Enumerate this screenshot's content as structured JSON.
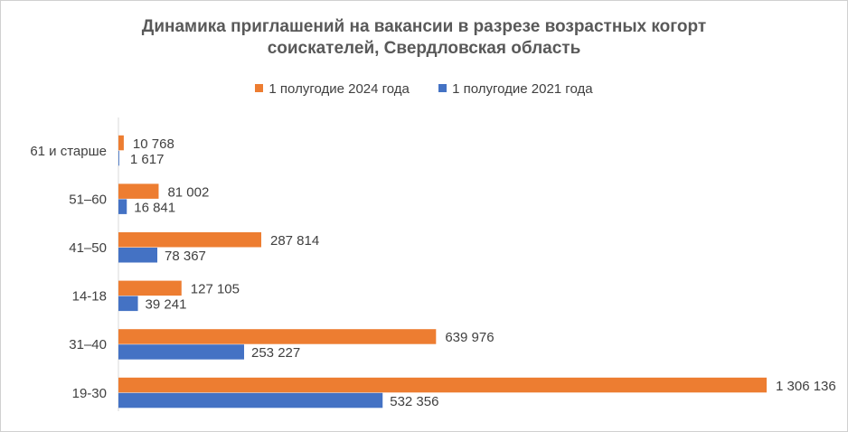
{
  "chart_data": {
    "type": "bar",
    "orientation": "horizontal",
    "title": "Динамика приглашений на вакансии в разрезе возрастных когорт соискателей, Свердловская область",
    "title_lines": [
      "Динамика приглашений на вакансии в разрезе возрастных когорт",
      "соискателей, Свердловская область"
    ],
    "categories": [
      "61 и старше",
      "51–60",
      "41–50",
      "14-18",
      "31–40",
      "19-30"
    ],
    "series": [
      {
        "name": "1 полугодие 2024 года",
        "color": "#ED7D31",
        "values": [
          10768,
          81002,
          287814,
          127105,
          639976,
          1306136
        ],
        "labels": [
          "10 768",
          "81 002",
          "287 814",
          "127 105",
          "639 976",
          "1 306 136"
        ]
      },
      {
        "name": "1 полугодие 2021 года",
        "color": "#4472C4",
        "values": [
          1617,
          16841,
          78367,
          39241,
          253227,
          532356
        ],
        "labels": [
          "1 617",
          "16 841",
          "78 367",
          "39 241",
          "253 227",
          "532 356"
        ]
      }
    ],
    "xlim": [
      0,
      1306136
    ],
    "grid": false,
    "legend_position": "top"
  }
}
